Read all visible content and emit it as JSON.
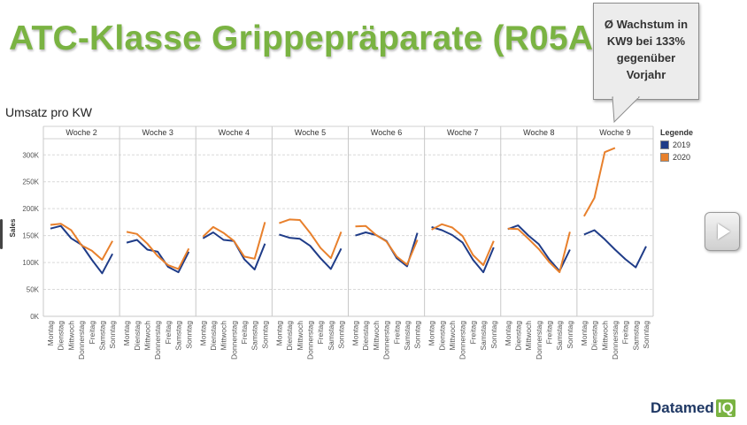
{
  "title": "ATC-Klasse Grippepräparate (R05A)",
  "callout": {
    "lines": [
      "Ø Wachstum in",
      "KW9 bei 133%",
      "gegenüber",
      "Vorjahr"
    ]
  },
  "subtitle": "Umsatz pro KW",
  "logo": {
    "text": "Datamed",
    "badge": "IQ"
  },
  "chart_data": {
    "type": "line",
    "ylabel": "Sales",
    "ylim": [
      0,
      330000
    ],
    "yticks": [
      0,
      50000,
      100000,
      150000,
      200000,
      250000,
      300000
    ],
    "ytick_labels": [
      "0K",
      "50K",
      "100K",
      "150K",
      "200K",
      "250K",
      "300K"
    ],
    "grid": true,
    "legend": {
      "title": "Legende",
      "placement": "right",
      "entries": [
        "2019",
        "2020"
      ]
    },
    "days": [
      "Montag",
      "Dienstag",
      "Mittwoch",
      "Donnerstag",
      "Freitag",
      "Samstag",
      "Sonntag"
    ],
    "panels": [
      {
        "name": "Woche 2",
        "series": [
          {
            "name": "2019",
            "color": "#1f3c88",
            "values": [
              163000,
              168000,
              145000,
              133000,
              105000,
              80000,
              116000
            ]
          },
          {
            "name": "2020",
            "color": "#e8802c",
            "values": [
              170000,
              172000,
              160000,
              132000,
              122000,
              105000,
              140000
            ]
          }
        ]
      },
      {
        "name": "Woche 3",
        "series": [
          {
            "name": "2019",
            "color": "#1f3c88",
            "values": [
              137000,
              142000,
              124000,
              120000,
              92000,
              82000,
              120000
            ]
          },
          {
            "name": "2020",
            "color": "#e8802c",
            "values": [
              157000,
              153000,
              135000,
              112000,
              95000,
              88000,
              126000
            ]
          }
        ]
      },
      {
        "name": "Woche 4",
        "series": [
          {
            "name": "2019",
            "color": "#1f3c88",
            "values": [
              145000,
              156000,
              142000,
              140000,
              106000,
              87000,
              135000
            ]
          },
          {
            "name": "2020",
            "color": "#e8802c",
            "values": [
              148000,
              166000,
              155000,
              140000,
              111000,
              107000,
              175000
            ]
          }
        ]
      },
      {
        "name": "Woche 5",
        "series": [
          {
            "name": "2019",
            "color": "#1f3c88",
            "values": [
              152000,
              146000,
              144000,
              131000,
              108000,
              88000,
              126000
            ]
          },
          {
            "name": "2020",
            "color": "#e8802c",
            "values": [
              173000,
              180000,
              179000,
              155000,
              127000,
              108000,
              157000
            ]
          }
        ]
      },
      {
        "name": "Woche 6",
        "series": [
          {
            "name": "2019",
            "color": "#1f3c88",
            "values": [
              150000,
              156000,
              151000,
              140000,
              108000,
              93000,
              155000
            ]
          },
          {
            "name": "2020",
            "color": "#e8802c",
            "values": [
              167000,
              168000,
              151000,
              139000,
              111000,
              96000,
              142000
            ]
          }
        ]
      },
      {
        "name": "Woche 7",
        "series": [
          {
            "name": "2019",
            "color": "#1f3c88",
            "values": [
              166000,
              160000,
              151000,
              137000,
              105000,
              82000,
              128000
            ]
          },
          {
            "name": "2020",
            "color": "#e8802c",
            "values": [
              161000,
              171000,
              165000,
              149000,
              114000,
              95000,
              140000
            ]
          }
        ]
      },
      {
        "name": "Woche 8",
        "series": [
          {
            "name": "2019",
            "color": "#1f3c88",
            "values": [
              162000,
              169000,
              150000,
              134000,
              106000,
              84000,
              124000
            ]
          },
          {
            "name": "2020",
            "color": "#e8802c",
            "values": [
              163000,
              162000,
              144000,
              125000,
              101000,
              82000,
              157000
            ]
          }
        ]
      },
      {
        "name": "Woche 9",
        "series": [
          {
            "name": "2019",
            "color": "#1f3c88",
            "values": [
              152000,
              160000,
              143000,
              124000,
              106000,
              91000,
              130000
            ]
          },
          {
            "name": "2020",
            "color": "#e8802c",
            "values": [
              186000,
              220000,
              305000,
              313000,
              null,
              null,
              null
            ]
          }
        ]
      }
    ]
  }
}
